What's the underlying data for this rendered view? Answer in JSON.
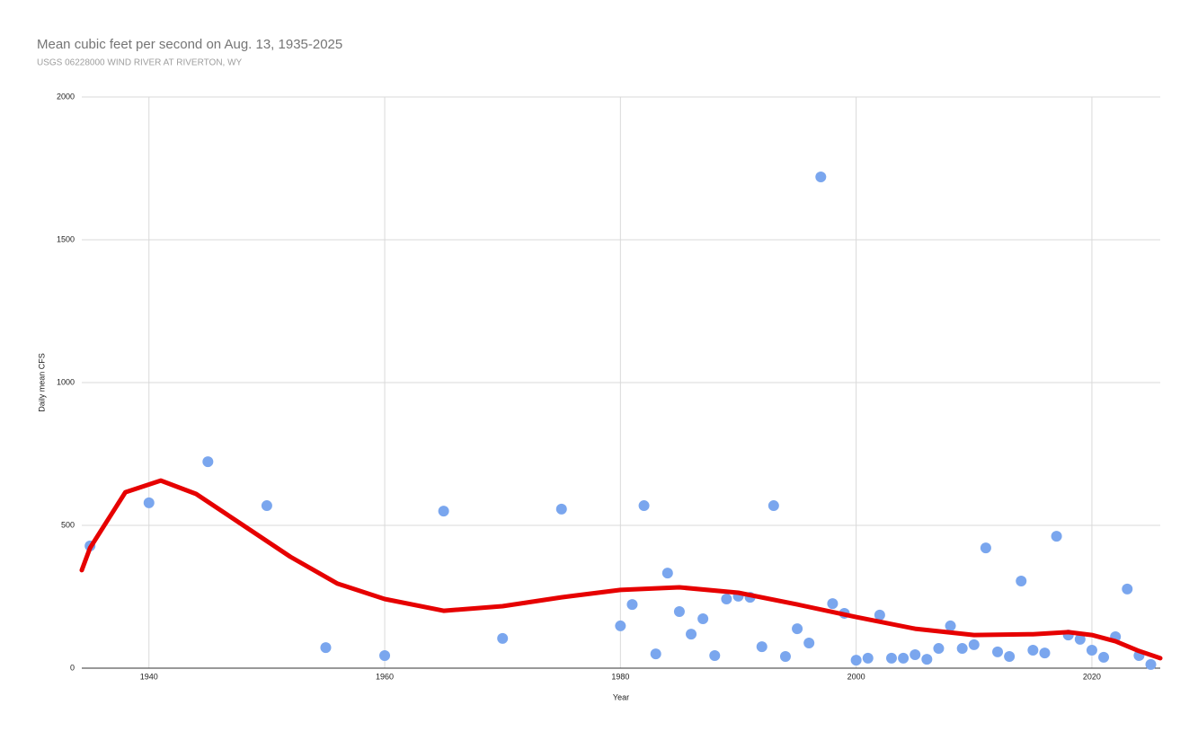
{
  "chart_data": {
    "type": "scatter",
    "title": "Mean cubic feet per second on Aug. 13, 1935-2025",
    "subtitle": "USGS 06228000 WIND RIVER AT RIVERTON, WY",
    "x_label": "Year",
    "y_label": "Daily mean CFS",
    "xlim": [
      1934.3,
      2025.8
    ],
    "xticks": [
      1940,
      1960,
      1980,
      2000,
      2020
    ],
    "ylim": [
      0,
      2000
    ],
    "yticks": [
      0,
      500,
      1000,
      1500,
      2000
    ],
    "grid": true,
    "color": "#7aa6ee",
    "x": [
      1935,
      1940,
      1945,
      1950,
      1955,
      1960,
      1965,
      1970,
      1975,
      1980,
      1981,
      1982,
      1983,
      1984,
      1985,
      1986,
      1987,
      1988,
      1989,
      1990,
      1991,
      1992,
      1993,
      1994,
      1995,
      1996,
      1997,
      1998,
      1999,
      2000,
      2001,
      2002,
      2003,
      2004,
      2005,
      2006,
      2007,
      2008,
      2009,
      2010,
      2011,
      2012,
      2013,
      2014,
      2015,
      2016,
      2017,
      2018,
      2019,
      2020,
      2021,
      2022,
      2023,
      2024,
      2025
    ],
    "values": [
      428,
      579,
      723,
      569,
      72,
      44,
      550,
      104,
      557,
      148,
      223,
      569,
      50,
      333,
      198,
      119,
      173,
      44,
      242,
      252,
      248,
      75,
      569,
      41,
      138,
      88,
      1720,
      226,
      192,
      28,
      35,
      186,
      35,
      35,
      47,
      31,
      69,
      148,
      69,
      82,
      421,
      57,
      41,
      305,
      63,
      53,
      462,
      116,
      101,
      63,
      38,
      110,
      277,
      44,
      13
    ],
    "trendline": {
      "color": "#e60000",
      "x": [
        1934.3,
        1935,
        1938,
        1941,
        1944,
        1948,
        1952,
        1956,
        1960,
        1965,
        1970,
        1975,
        1980,
        1985,
        1990,
        1995,
        2000,
        2005,
        2010,
        2015,
        2018,
        2020,
        2022,
        2024,
        2025.8
      ],
      "values": [
        343,
        421,
        616,
        657,
        610,
        500,
        390,
        296,
        242,
        201,
        217,
        248,
        274,
        283,
        264,
        223,
        179,
        138,
        116,
        119,
        126,
        116,
        94,
        60,
        35
      ]
    }
  }
}
